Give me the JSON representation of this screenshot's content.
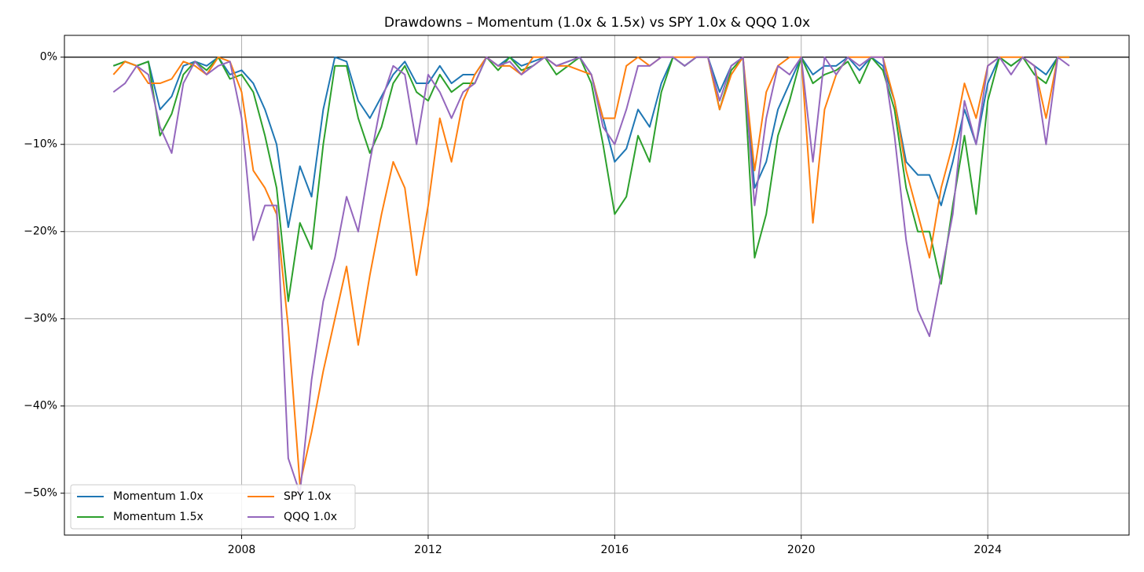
{
  "chart_data": {
    "type": "line",
    "title": "Drawdowns – Momentum (1.0x & 1.5x) vs SPY 1.0x & QQQ 1.0x",
    "x": [
      2005.25,
      2005.5,
      2005.75,
      2006,
      2006.25,
      2006.5,
      2006.75,
      2007,
      2007.25,
      2007.5,
      2007.75,
      2008,
      2008.25,
      2008.5,
      2008.75,
      2009,
      2009.25,
      2009.5,
      2009.75,
      2010,
      2010.25,
      2010.5,
      2010.75,
      2011,
      2011.25,
      2011.5,
      2011.75,
      2012,
      2012.25,
      2012.5,
      2012.75,
      2013,
      2013.25,
      2013.5,
      2013.75,
      2014,
      2014.25,
      2014.5,
      2014.75,
      2015,
      2015.25,
      2015.5,
      2015.75,
      2016,
      2016.25,
      2016.5,
      2016.75,
      2017,
      2017.25,
      2017.5,
      2017.75,
      2018,
      2018.25,
      2018.5,
      2018.75,
      2019,
      2019.25,
      2019.5,
      2019.75,
      2020,
      2020.25,
      2020.5,
      2020.75,
      2021,
      2021.25,
      2021.5,
      2021.75,
      2022,
      2022.25,
      2022.5,
      2022.75,
      2023,
      2023.25,
      2023.5,
      2023.75,
      2024,
      2024.25,
      2024.5,
      2024.75,
      2025,
      2025.25,
      2025.5,
      2025.75
    ],
    "series": [
      {
        "name": "Momentum 1.0x",
        "color": "#1f77b4",
        "values": [
          -1,
          -0.5,
          -1,
          -0.5,
          -6,
          -4.5,
          -1,
          -0.5,
          -1,
          0,
          -2,
          -1.5,
          -3,
          -6,
          -10,
          -19.5,
          -12.5,
          -16,
          -6,
          0,
          -0.5,
          -5,
          -7,
          -4.5,
          -2,
          -0.5,
          -3,
          -3,
          -1,
          -3,
          -2,
          -2,
          0,
          -1,
          0,
          -1,
          -0.5,
          0,
          -1,
          -0.5,
          0,
          -2,
          -7,
          -12,
          -10.5,
          -6,
          -8,
          -3,
          0,
          -1,
          0,
          0,
          -4,
          -1,
          0,
          -15,
          -12,
          -6,
          -3,
          0,
          -2,
          -1,
          -1,
          0,
          -1.5,
          0,
          -1,
          -5,
          -12,
          -13.5,
          -13.5,
          -17,
          -12,
          -6,
          -10,
          -3,
          0,
          -1,
          0,
          -1,
          -2,
          0,
          0
        ]
      },
      {
        "name": "Momentum 1.5x",
        "color": "#2ca02c",
        "values": [
          -1,
          -0.5,
          -1,
          -0.5,
          -9,
          -6.5,
          -2,
          -0.5,
          -1.5,
          0,
          -2.5,
          -2,
          -4,
          -9,
          -15,
          -28,
          -19,
          -22,
          -10,
          -1,
          -1,
          -7,
          -11,
          -8,
          -3,
          -1,
          -4,
          -5,
          -2,
          -4,
          -3,
          -3,
          0,
          -1.5,
          0,
          -1.5,
          -1,
          0,
          -2,
          -1,
          0,
          -3,
          -10,
          -18,
          -16,
          -9,
          -12,
          -4,
          0,
          -1,
          0,
          0,
          -6,
          -1.5,
          0,
          -23,
          -18,
          -9,
          -5,
          0,
          -3,
          -2,
          -1.5,
          -0.5,
          -3,
          0,
          -1.5,
          -6,
          -15,
          -20,
          -20,
          -26,
          -17,
          -9,
          -18,
          -5,
          0,
          -1,
          0,
          -2,
          -3,
          0,
          0
        ]
      },
      {
        "name": "SPY 1.0x",
        "color": "#ff7f0e",
        "values": [
          -2,
          -0.5,
          -1,
          -3,
          -3,
          -2.5,
          -0.5,
          -1,
          -2,
          0,
          -0.5,
          -4,
          -13,
          -15,
          -18,
          -31,
          -49,
          -43,
          -36,
          -30,
          -24,
          -33,
          -25,
          -18,
          -12,
          -15,
          -25,
          -17,
          -7,
          -12,
          -5,
          -2,
          0,
          -1,
          -1,
          -2,
          0,
          0,
          -1,
          -1,
          -1.5,
          -2,
          -7,
          -7,
          -1,
          0,
          -1,
          0,
          0,
          0,
          0,
          0,
          -6,
          -2,
          0,
          -13,
          -4,
          -1,
          0,
          0,
          -19,
          -6,
          -2,
          0,
          0,
          0,
          0,
          -5,
          -13,
          -18,
          -23,
          -15,
          -10,
          -3,
          -7,
          -1,
          0,
          0,
          0,
          -1,
          -7,
          0,
          0
        ]
      },
      {
        "name": "QQQ 1.0x",
        "color": "#9467bd",
        "values": [
          -4,
          -3,
          -1,
          -2,
          -8,
          -11,
          -3,
          -0.5,
          -2,
          -1,
          -0.5,
          -7,
          -21,
          -17,
          -17,
          -46,
          -50,
          -37,
          -28,
          -23,
          -16,
          -20,
          -12,
          -5,
          -1,
          -2,
          -10,
          -2,
          -4,
          -7,
          -4,
          -3,
          0,
          -1,
          -0.5,
          -2,
          -1,
          0,
          -1,
          -0.5,
          0,
          -2,
          -8,
          -10,
          -6,
          -1,
          -1,
          0,
          0,
          -1,
          0,
          0,
          -5,
          -1,
          0,
          -17,
          -7,
          -1,
          -2,
          0,
          -12,
          0,
          -2,
          0,
          -1,
          0,
          0,
          -9,
          -21,
          -29,
          -32,
          -25,
          -18,
          -5,
          -10,
          -1,
          0,
          -2,
          0,
          -1,
          -10,
          0,
          -1
        ]
      }
    ],
    "xlim": [
      2004.2,
      2027.03
    ],
    "xticks": [
      2008,
      2012,
      2016,
      2020,
      2024
    ],
    "ylim": [
      -54.8,
      2.5
    ],
    "yticks": [
      {
        "value": 0,
        "label": "0%"
      },
      {
        "value": -10,
        "label": "−10%"
      },
      {
        "value": -20,
        "label": "−20%"
      },
      {
        "value": -30,
        "label": "−30%"
      },
      {
        "value": -40,
        "label": "−40%"
      },
      {
        "value": -50,
        "label": "−50%"
      }
    ],
    "hline": 0,
    "grid": true,
    "legend": "lower left",
    "legend_columns": 2
  }
}
